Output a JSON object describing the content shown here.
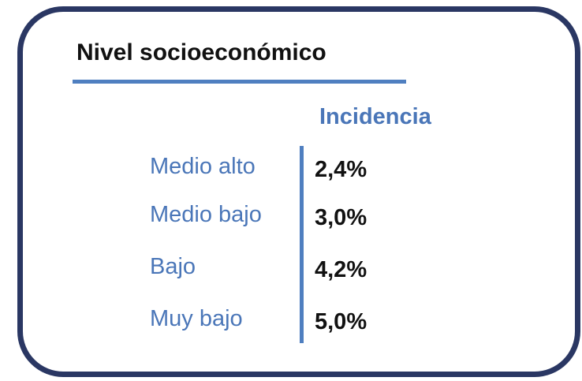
{
  "title": "Nivel socioeconómico",
  "table": {
    "header": "Incidencia",
    "rows": [
      [
        "Medio alto",
        "2,4%"
      ],
      [
        "Medio bajo",
        "3,0%"
      ],
      [
        "Bajo",
        "4,2%"
      ],
      [
        "Muy bajo",
        "5,0%"
      ]
    ]
  }
}
